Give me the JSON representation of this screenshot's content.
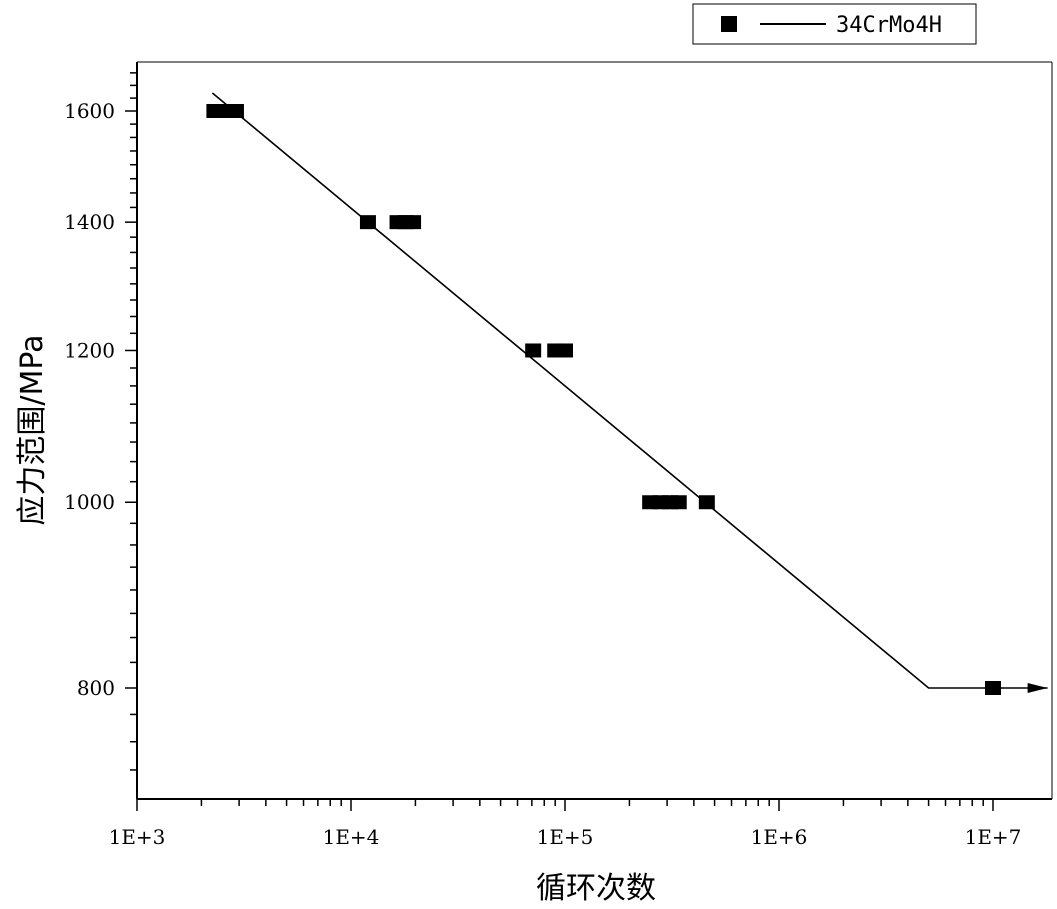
{
  "chart_data": {
    "type": "scatter",
    "xlabel": "循环次数",
    "ylabel": "应力范围/MPa",
    "x_scale": "log",
    "y_scale": "log",
    "xlim": [
      1000,
      18000000
    ],
    "ylim": [
      650,
      1680
    ],
    "x_ticks": [
      {
        "value": 1000,
        "label": "1E+3"
      },
      {
        "value": 10000,
        "label": "1E+4"
      },
      {
        "value": 100000,
        "label": "1E+5"
      },
      {
        "value": 1000000,
        "label": "1E+6"
      },
      {
        "value": 10000000,
        "label": "1E+7"
      }
    ],
    "y_ticks": [
      {
        "value": 800,
        "label": "800"
      },
      {
        "value": 1000,
        "label": "1000"
      },
      {
        "value": 1200,
        "label": "1200"
      },
      {
        "value": 1400,
        "label": "1400"
      },
      {
        "value": 1600,
        "label": "1600"
      }
    ],
    "legend": {
      "position": "top-right",
      "label": "34CrMo4H"
    },
    "series": [
      {
        "name": "34CrMo4H",
        "kind": "points",
        "points": [
          {
            "x": 2300,
            "y": 1600
          },
          {
            "x": 2500,
            "y": 1600
          },
          {
            "x": 2700,
            "y": 1600
          },
          {
            "x": 2900,
            "y": 1600
          },
          {
            "x": 12000,
            "y": 1400
          },
          {
            "x": 16500,
            "y": 1400
          },
          {
            "x": 18000,
            "y": 1400
          },
          {
            "x": 19500,
            "y": 1400
          },
          {
            "x": 71000,
            "y": 1200
          },
          {
            "x": 90000,
            "y": 1200
          },
          {
            "x": 100000,
            "y": 1200
          },
          {
            "x": 250000,
            "y": 1000
          },
          {
            "x": 280000,
            "y": 1000
          },
          {
            "x": 310000,
            "y": 1000
          },
          {
            "x": 340000,
            "y": 1000
          },
          {
            "x": 460000,
            "y": 1000
          },
          {
            "x": 10000000,
            "y": 800
          }
        ]
      },
      {
        "name": "34CrMo4H",
        "kind": "line",
        "points": [
          {
            "x": 2250,
            "y": 1635
          },
          {
            "x": 5000000,
            "y": 800
          },
          {
            "x": 18000000,
            "y": 800
          }
        ],
        "arrow_end": true
      }
    ]
  }
}
